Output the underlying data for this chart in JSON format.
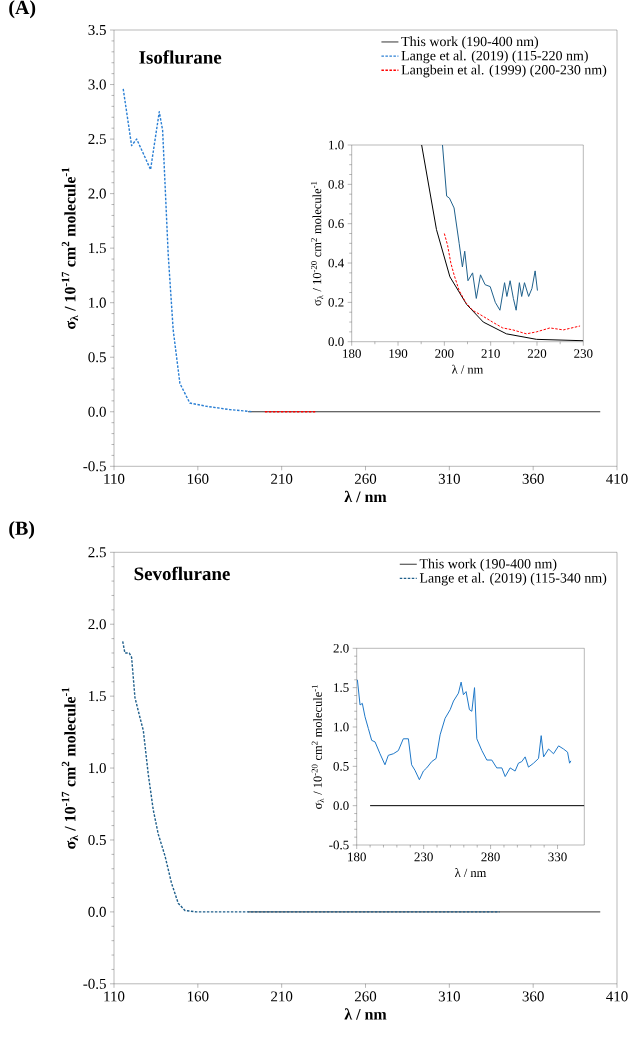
{
  "chart_data": [
    {
      "type": "line",
      "title": "(A)",
      "annotations": [
        "Isoflurane"
      ],
      "xlabel": "λ / nm",
      "ylabel": "σ$_{λ}$ / 10$^{-17}$ cm$^{2}$ molecule$^{-1}$",
      "xlim": [
        110,
        410
      ],
      "xticks": [
        110,
        160,
        210,
        260,
        310,
        360,
        410
      ],
      "ylim": [
        -0.5,
        3.5
      ],
      "yticks": [
        {
          "value": -0.5,
          "label": "-0.5"
        },
        {
          "value": 0,
          "label": "0.0"
        },
        {
          "value": 0.5,
          "label": "0.5"
        },
        {
          "value": 1,
          "label": "1.0"
        },
        {
          "value": 1.5,
          "label": "1.5"
        },
        {
          "value": 2,
          "label": "2.0"
        },
        {
          "value": 2.5,
          "label": "2.5"
        },
        {
          "value": 3,
          "label": "3.0"
        },
        {
          "value": 3.5,
          "label": "3.5"
        }
      ],
      "legend": "top right",
      "series": [
        {
          "name": "This work (190-400 nm)",
          "color": "#000000",
          "line_style": "solid",
          "x": [
            190,
            400
          ],
          "values": [
            0,
            0
          ]
        },
        {
          "name": "Lange et al. (2019) (115-220 nm)",
          "color": "#2a7fd4",
          "line_style": "dashed",
          "x": [
            115.5,
            120.5,
            123.5,
            127.4,
            131.8,
            137.0,
            139.0,
            142.3,
            145.3,
            149.3,
            155.2,
            165.2,
            179,
            192.7
          ],
          "values": [
            2.96,
            2.44,
            2.5,
            2.37,
            2.22,
            2.75,
            2.58,
            1.45,
            0.75,
            0.26,
            0.08,
            0.05,
            0.02,
            0
          ]
        },
        {
          "name": "Langbein et al. (1999) (200-230 nm)",
          "color": "#ff0000",
          "line_style": "dashed",
          "x": [
            200,
            230
          ],
          "values": [
            0,
            0
          ]
        }
      ]
    },
    {
      "type": "line",
      "xlabel": "λ / nm",
      "ylabel": "σ$_{λ}$ / 10$^{-20}$ cm$^{2}$ molecule$^{-1}$",
      "xlim": [
        180,
        230
      ],
      "xticks": [
        180,
        190,
        200,
        210,
        220,
        230
      ],
      "ylim": [
        0,
        1
      ],
      "yticks": [
        {
          "value": 0,
          "label": "0.0"
        },
        {
          "value": 0.2,
          "label": "0.2"
        },
        {
          "value": 0.4,
          "label": "0.4"
        },
        {
          "value": 0.6,
          "label": "0.6"
        },
        {
          "value": 0.8,
          "label": "0.8"
        },
        {
          "value": 1,
          "label": "1.0"
        }
      ],
      "series": [
        {
          "color": "#000000",
          "line_style": "solid",
          "x": [
            195.1,
            198.3,
            201.2,
            204.8,
            208.4,
            213.4,
            219.9,
            230
          ],
          "values": [
            1.0,
            0.57,
            0.33,
            0.19,
            0.1,
            0.04,
            0.012,
            0.005
          ]
        },
        {
          "color": "#20618c",
          "line_style": "solid",
          "x": [
            199.6,
            200.5,
            201.1,
            202.1,
            203.2,
            203.9,
            204.4,
            205.1,
            206.1,
            206.9,
            207.8,
            208.8,
            209.9,
            211.0,
            212.0,
            213.0,
            213.5,
            214.2,
            214.9,
            215.5,
            216.2,
            216.7,
            217.3,
            218.2,
            218.9,
            219.6,
            220.1
          ],
          "values": [
            1.0,
            0.74,
            0.73,
            0.68,
            0.5,
            0.38,
            0.46,
            0.31,
            0.35,
            0.22,
            0.34,
            0.29,
            0.28,
            0.2,
            0.16,
            0.3,
            0.23,
            0.31,
            0.22,
            0.16,
            0.3,
            0.23,
            0.3,
            0.23,
            0.27,
            0.36,
            0.26
          ]
        },
        {
          "color": "#ff0000",
          "line_style": "dashed",
          "x": [
            200.0,
            200.7,
            201.4,
            202.1,
            203.2,
            204.6,
            206.1,
            208.3,
            210.4,
            212.6,
            214.8,
            217.7,
            219.9,
            222.8,
            225.7,
            229.3
          ],
          "values": [
            0.55,
            0.49,
            0.4,
            0.34,
            0.26,
            0.2,
            0.16,
            0.13,
            0.1,
            0.07,
            0.06,
            0.04,
            0.05,
            0.07,
            0.06,
            0.08
          ]
        }
      ]
    },
    {
      "type": "line",
      "title": "(B)",
      "annotations": [
        "Sevoflurane"
      ],
      "xlabel": "λ / nm",
      "ylabel": "σ$_{λ}$ / 10$^{-17}$ cm$^{2}$ molecule$^{-1}$",
      "xlim": [
        110,
        410
      ],
      "xticks": [
        110,
        160,
        210,
        260,
        310,
        360,
        410
      ],
      "ylim": [
        -0.5,
        2.5
      ],
      "yticks": [
        {
          "value": -0.5,
          "label": "-0.5"
        },
        {
          "value": 0,
          "label": "0.0"
        },
        {
          "value": 0.5,
          "label": "0.5"
        },
        {
          "value": 1,
          "label": "1.0"
        },
        {
          "value": 1.5,
          "label": "1.5"
        },
        {
          "value": 2,
          "label": "2.0"
        },
        {
          "value": 2.5,
          "label": "2.5"
        }
      ],
      "legend": "top right",
      "series": [
        {
          "name": "This work (190-400 nm)",
          "color": "#000000",
          "line_style": "solid",
          "x": [
            190,
            400
          ],
          "values": [
            0,
            0
          ]
        },
        {
          "name": "Lange et al. (2019) (115-340 nm)",
          "color": "#1f5f8b",
          "line_style": "dashed",
          "x": [
            115.2,
            116.5,
            119.1,
            120.5,
            122.5,
            125.5,
            127.5,
            130.4,
            133.4,
            136.4,
            140.4,
            144.3,
            148.3,
            152.3,
            159.2,
            340
          ],
          "values": [
            1.88,
            1.8,
            1.8,
            1.77,
            1.49,
            1.35,
            1.26,
            0.96,
            0.71,
            0.54,
            0.39,
            0.2,
            0.06,
            0.01,
            0,
            0
          ]
        }
      ]
    },
    {
      "type": "line",
      "xlabel": "λ / nm",
      "ylabel": "σ$_{λ}$ / 10$^{-20}$ cm$^{2}$ molecule$^{-1}$",
      "xlim": [
        180,
        350
      ],
      "xticks": [
        180,
        230,
        280,
        330
      ],
      "ylim": [
        -0.5,
        2
      ],
      "yticks": [
        {
          "value": -0.5,
          "label": "-0.5"
        },
        {
          "value": 0,
          "label": "0.0"
        },
        {
          "value": 0.5,
          "label": "0.5"
        },
        {
          "value": 1,
          "label": "1.0"
        },
        {
          "value": 1.5,
          "label": "1.5"
        },
        {
          "value": 2,
          "label": "2.0"
        }
      ],
      "series": [
        {
          "color": "#000000",
          "line_style": "solid",
          "x": [
            190,
            350
          ],
          "values": [
            0,
            0
          ]
        },
        {
          "color": "#1f78c8",
          "line_style": "solid",
          "x": [
            180.5,
            182.5,
            184.2,
            186.2,
            188.7,
            191.2,
            193.7,
            197.4,
            201.1,
            203.6,
            207.4,
            211.1,
            214.8,
            218.6,
            221.0,
            223.5,
            226.8,
            229.8,
            232.3,
            236.0,
            239.3,
            242.3,
            246.0,
            249.8,
            252.3,
            256.0,
            258.0,
            259.7,
            261.7,
            264.2,
            266.0,
            268.0,
            269.7,
            273.5,
            277.2,
            280.9,
            284.6,
            288.4,
            290.9,
            294.6,
            298.3,
            300.8,
            303.3,
            305.8,
            308.3,
            312.1,
            315.8,
            317.8,
            319.6,
            323.3,
            327.0,
            330.8,
            334.5,
            337.5,
            339.0,
            340.0
          ],
          "values": [
            1.6,
            1.28,
            1.3,
            1.13,
            0.98,
            0.83,
            0.81,
            0.66,
            0.52,
            0.64,
            0.66,
            0.7,
            0.85,
            0.85,
            0.52,
            0.45,
            0.33,
            0.44,
            0.48,
            0.56,
            0.6,
            0.9,
            1.11,
            1.22,
            1.33,
            1.43,
            1.57,
            1.41,
            1.45,
            1.22,
            1.2,
            1.5,
            0.85,
            0.7,
            0.58,
            0.58,
            0.48,
            0.48,
            0.37,
            0.48,
            0.44,
            0.54,
            0.56,
            0.62,
            0.49,
            0.54,
            0.6,
            0.89,
            0.62,
            0.72,
            0.66,
            0.76,
            0.72,
            0.68,
            0.54,
            0.57
          ]
        }
      ]
    }
  ]
}
